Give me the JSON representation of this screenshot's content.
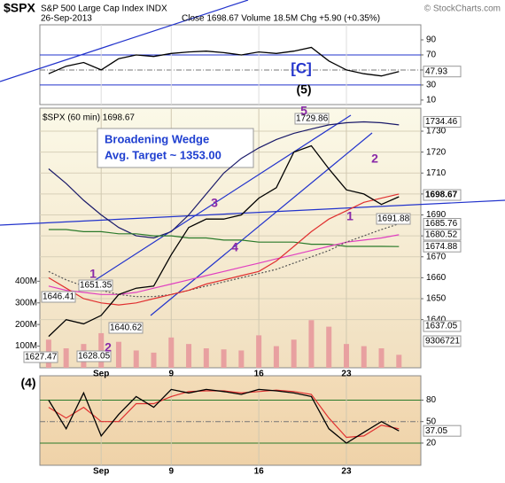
{
  "header": {
    "symbol": "$SPX",
    "name": "S&P 500 Large Cap Index INDX",
    "date": "26-Sep-2013",
    "quote": "Close 1698.67  Volume 18.5M  Chg +5.90 (+0.35%)",
    "credit": "© StockCharts.com",
    "wedge_title": "Broadening Wedge",
    "wedge_target": "Avg. Target ~ 1353.00",
    "wave_c": "[C]",
    "wave_5_major": "(5)",
    "wave_4_major": "(4)"
  },
  "chart_data": [
    {
      "type": "line",
      "x": [
        0,
        1,
        2,
        3,
        4,
        5,
        6,
        7,
        8,
        9,
        10,
        11,
        12,
        13,
        14,
        15,
        16,
        17,
        18,
        19,
        20
      ],
      "xlim": [
        -0.5,
        21.25
      ],
      "ylim": [
        4,
        110
      ],
      "yticks": [
        10,
        30,
        50,
        70,
        90
      ],
      "y_axis_side": "right",
      "ref_lines": [
        30,
        50,
        70
      ],
      "series": [
        {
          "color": "#000000",
          "values": [
            45,
            55,
            60,
            50,
            65,
            70,
            68,
            72,
            74,
            75,
            73,
            70,
            74,
            72,
            75,
            80,
            62,
            50,
            45,
            42,
            47.93
          ]
        }
      ],
      "level_labels": [
        "47.93"
      ]
    },
    {
      "type": "line",
      "title": "$SPX (60 min) 1698.67",
      "x": [
        0,
        1,
        2,
        3,
        4,
        5,
        6,
        7,
        8,
        9,
        10,
        11,
        12,
        13,
        14,
        15,
        16,
        17,
        18,
        19,
        20
      ],
      "xlim": [
        -0.5,
        21.25
      ],
      "ylim": [
        1617,
        1741
      ],
      "yticks": [
        1640,
        1650,
        1660,
        1670,
        1680,
        1690,
        1700,
        1710,
        1720,
        1730
      ],
      "y_axis_side": "right",
      "grid": true,
      "xticks": [
        {
          "value": 3,
          "label": "Sep"
        },
        {
          "value": 7,
          "label": "9"
        },
        {
          "value": 12,
          "label": "16"
        },
        {
          "value": 17,
          "label": "23"
        }
      ],
      "series": [
        {
          "color": "#1a1a6a",
          "values": [
            1712,
            1705,
            1697,
            1690,
            1684,
            1680,
            1679,
            1682,
            1690,
            1700,
            1710,
            1717,
            1722,
            1726,
            1729,
            1731,
            1733,
            1734,
            1734.46,
            1734,
            1733
          ]
        },
        {
          "color": "#2a7a2a",
          "values": [
            1683,
            1683,
            1682,
            1682,
            1681,
            1681,
            1680,
            1680,
            1679,
            1679,
            1678,
            1678,
            1677,
            1677,
            1677,
            1676,
            1676,
            1675,
            1675,
            1675,
            1674.88
          ]
        },
        {
          "color": "#e040c0",
          "values": [
            1656,
            1654,
            1653,
            1652,
            1652,
            1653,
            1655,
            1657,
            1659,
            1661,
            1663,
            1665,
            1667,
            1669,
            1671,
            1673,
            1675,
            1677,
            1678,
            1679,
            1680.52
          ]
        },
        {
          "color": "#555555",
          "style": "dotted",
          "values": [
            1663,
            1659,
            1656,
            1654,
            1652,
            1651,
            1651,
            1652,
            1654,
            1656,
            1658,
            1660,
            1662,
            1664,
            1667,
            1670,
            1673,
            1677,
            1680,
            1683,
            1685.76
          ]
        },
        {
          "color": "#e03030",
          "values": [
            1660,
            1655,
            1650,
            1648,
            1647,
            1648,
            1650,
            1652,
            1654,
            1657,
            1659,
            1661,
            1663,
            1668,
            1675,
            1682,
            1688,
            1692,
            1696,
            1698,
            1700
          ]
        },
        {
          "color": "#000000",
          "values": [
            1632,
            1640,
            1638,
            1642,
            1652,
            1655,
            1656,
            1671,
            1684,
            1688,
            1688,
            1690,
            1698,
            1703,
            1720,
            1723,
            1712,
            1702,
            1700,
            1695,
            1698.67
          ]
        }
      ],
      "level_labels": [
        "1734.46",
        "1698.67",
        "1685.76",
        "1680.52",
        "1674.88"
      ],
      "price_labels": [
        "1646.41",
        "1651.35",
        "1627.47",
        "1628.05",
        "1640.62",
        "1729.86",
        "1691.88"
      ],
      "wave_labels": [
        "1",
        "2",
        "3",
        "4",
        "5",
        "1",
        "2"
      ]
    },
    {
      "type": "bar",
      "x": [
        0,
        1,
        2,
        3,
        4,
        5,
        6,
        7,
        8,
        9,
        10,
        11,
        12,
        13,
        14,
        15,
        16,
        17,
        18,
        19,
        20
      ],
      "xlim": [
        -0.5,
        21.25
      ],
      "ylim": [
        0,
        1200
      ],
      "y_axis_side": "left",
      "color": "#e8a0a0",
      "yticks": [
        {
          "value": 100,
          "label": "100M"
        },
        {
          "value": 200,
          "label": "200M"
        },
        {
          "value": 300,
          "label": "300M"
        },
        {
          "value": 400,
          "label": "400M"
        }
      ],
      "values": [
        130,
        90,
        110,
        160,
        120,
        80,
        70,
        140,
        110,
        90,
        85,
        80,
        150,
        100,
        130,
        220,
        190,
        110,
        100,
        90,
        60
      ],
      "level_labels": [
        "1637.05",
        "9306721"
      ]
    },
    {
      "type": "line",
      "x": [
        0,
        1,
        2,
        3,
        4,
        5,
        6,
        7,
        8,
        9,
        10,
        11,
        12,
        13,
        14,
        15,
        16,
        17,
        18,
        19,
        20
      ],
      "xlim": [
        -0.5,
        21.25
      ],
      "ylim": [
        -11,
        114
      ],
      "yticks": [
        20,
        50,
        80
      ],
      "y_axis_side": "right",
      "ref_lines": [
        20,
        50,
        80
      ],
      "xticks": [
        {
          "value": 3,
          "label": "Sep"
        },
        {
          "value": 7,
          "label": "9"
        },
        {
          "value": 12,
          "label": "16"
        },
        {
          "value": 17,
          "label": "23"
        }
      ],
      "series": [
        {
          "color": "#e03030",
          "values": [
            70,
            55,
            70,
            50,
            50,
            75,
            75,
            85,
            92,
            93,
            93,
            90,
            92,
            94,
            92,
            88,
            55,
            28,
            30,
            45,
            40
          ]
        },
        {
          "color": "#000000",
          "values": [
            80,
            40,
            90,
            30,
            60,
            85,
            70,
            95,
            90,
            95,
            92,
            88,
            95,
            93,
            90,
            85,
            40,
            20,
            35,
            50,
            37.05
          ]
        }
      ],
      "level_labels": [
        "37.05"
      ]
    }
  ]
}
